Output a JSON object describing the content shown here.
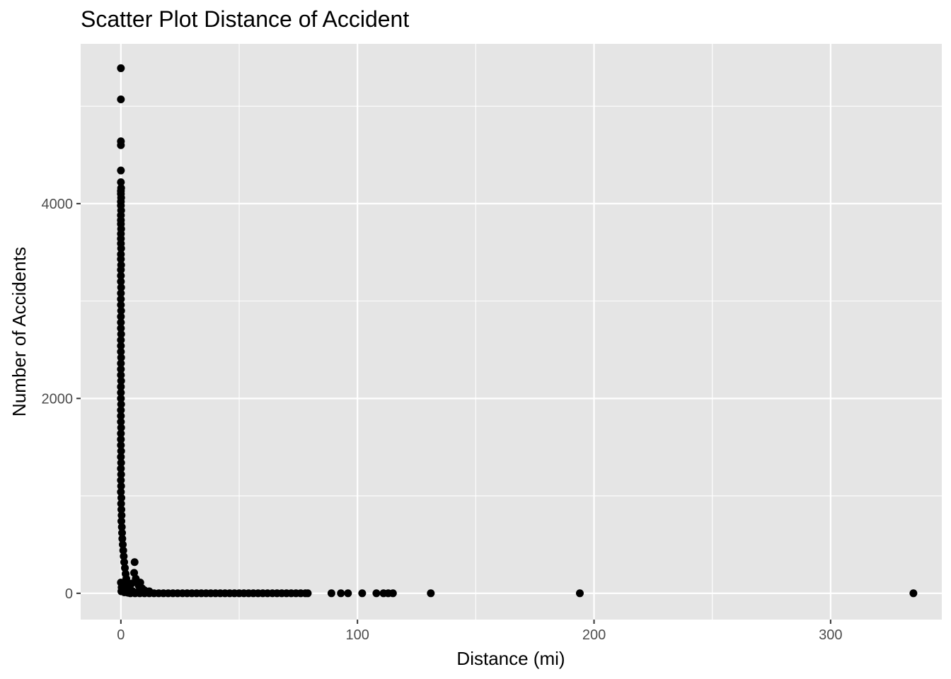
{
  "chart_data": {
    "type": "scatter",
    "title": "Scatter Plot Distance of Accident",
    "xlabel": "Distance (mi)",
    "ylabel": "Number of Accidents",
    "xlim": [
      -17,
      347
    ],
    "ylim": [
      -270,
      5640
    ],
    "x_ticks": [
      0,
      100,
      200,
      300
    ],
    "y_ticks": [
      0,
      2000,
      4000
    ],
    "x_tick_labels": [
      "0",
      "100",
      "200",
      "300"
    ],
    "y_tick_labels": [
      "0",
      "2000",
      "4000"
    ],
    "x_minor_ticks": [
      50,
      150,
      250
    ],
    "y_minor_ticks": [
      1000,
      3000,
      5000
    ],
    "grid": true,
    "legend": "none",
    "point_color": "#000000",
    "panel_background": "#e5e5e5",
    "grid_color": "#ffffff",
    "series": [
      {
        "points": [
          [
            0,
            5390
          ],
          [
            0,
            5070
          ],
          [
            0,
            4640
          ],
          [
            0,
            4600
          ],
          [
            0,
            4340
          ],
          [
            0,
            4220
          ],
          [
            0.1,
            4160
          ],
          [
            0,
            4130
          ],
          [
            0,
            4100
          ],
          [
            0.1,
            4060
          ],
          [
            0,
            4020
          ],
          [
            0,
            3980
          ],
          [
            0.1,
            3930
          ],
          [
            0,
            3880
          ],
          [
            0,
            3830
          ],
          [
            0,
            3790
          ],
          [
            0.1,
            3740
          ],
          [
            0,
            3690
          ],
          [
            0,
            3640
          ],
          [
            0,
            3590
          ],
          [
            0.1,
            3540
          ],
          [
            0,
            3480
          ],
          [
            0,
            3430
          ],
          [
            0.1,
            3370
          ],
          [
            0,
            3320
          ],
          [
            0,
            3260
          ],
          [
            0,
            3200
          ],
          [
            0.1,
            3140
          ],
          [
            0,
            3080
          ],
          [
            0,
            3020
          ],
          [
            0,
            2960
          ],
          [
            0.1,
            2900
          ],
          [
            0,
            2840
          ],
          [
            0,
            2780
          ],
          [
            0,
            2720
          ],
          [
            0.1,
            2660
          ],
          [
            0,
            2600
          ],
          [
            0,
            2540
          ],
          [
            0,
            2480
          ],
          [
            0.1,
            2420
          ],
          [
            0,
            2360
          ],
          [
            0,
            2300
          ],
          [
            0,
            2240
          ],
          [
            0.1,
            2180
          ],
          [
            0,
            2120
          ],
          [
            0,
            2060
          ],
          [
            0,
            2000
          ],
          [
            0.1,
            1940
          ],
          [
            0,
            1880
          ],
          [
            0,
            1820
          ],
          [
            0,
            1760
          ],
          [
            0.1,
            1700
          ],
          [
            0,
            1640
          ],
          [
            0,
            1580
          ],
          [
            0,
            1520
          ],
          [
            0.1,
            1460
          ],
          [
            0,
            1400
          ],
          [
            0.1,
            1340
          ],
          [
            0,
            1280
          ],
          [
            0.1,
            1220
          ],
          [
            0,
            1160
          ],
          [
            0.1,
            1100
          ],
          [
            0,
            1040
          ],
          [
            0.2,
            980
          ],
          [
            0.1,
            920
          ],
          [
            0.2,
            860
          ],
          [
            0.3,
            800
          ],
          [
            0.2,
            740
          ],
          [
            0.4,
            680
          ],
          [
            0.5,
            620
          ],
          [
            0.6,
            560
          ],
          [
            0.8,
            500
          ],
          [
            1,
            440
          ],
          [
            1.2,
            380
          ],
          [
            1.4,
            320
          ],
          [
            1.7,
            260
          ],
          [
            2,
            200
          ],
          [
            2.3,
            150
          ],
          [
            2.7,
            110
          ],
          [
            3.2,
            75
          ],
          [
            3.8,
            50
          ],
          [
            0,
            110
          ],
          [
            0.3,
            60
          ],
          [
            0.8,
            30
          ],
          [
            5.8,
            320
          ],
          [
            5.6,
            210
          ],
          [
            6.3,
            150
          ],
          [
            6.8,
            120
          ],
          [
            4.5,
            100
          ],
          [
            8.2,
            110
          ],
          [
            7.5,
            80
          ],
          [
            9,
            50
          ],
          [
            10,
            30
          ],
          [
            12,
            20
          ],
          [
            5,
            20
          ],
          [
            7,
            10
          ],
          [
            0.2,
            20
          ],
          [
            1.5,
            10
          ],
          [
            3,
            5
          ],
          [
            4,
            0
          ],
          [
            6,
            0
          ],
          [
            8,
            0
          ],
          [
            10,
            0
          ],
          [
            12,
            0
          ],
          [
            14,
            0
          ],
          [
            16,
            0
          ],
          [
            18,
            0
          ],
          [
            20,
            0
          ],
          [
            22,
            0
          ],
          [
            24,
            0
          ],
          [
            26,
            0
          ],
          [
            28,
            0
          ],
          [
            30,
            0
          ],
          [
            32,
            0
          ],
          [
            34,
            0
          ],
          [
            36,
            0
          ],
          [
            38,
            0
          ],
          [
            40,
            0
          ],
          [
            42,
            0
          ],
          [
            44,
            0
          ],
          [
            46,
            0
          ],
          [
            48,
            0
          ],
          [
            50,
            0
          ],
          [
            52,
            0
          ],
          [
            54,
            0
          ],
          [
            56,
            0
          ],
          [
            58,
            0
          ],
          [
            60,
            0
          ],
          [
            62,
            0
          ],
          [
            64,
            0
          ],
          [
            66,
            0
          ],
          [
            68,
            0
          ],
          [
            70,
            0
          ],
          [
            72,
            0
          ],
          [
            74,
            0
          ],
          [
            76,
            0
          ],
          [
            78,
            0
          ],
          [
            79,
            0
          ],
          [
            89,
            0
          ],
          [
            93,
            0
          ],
          [
            96,
            0
          ],
          [
            102,
            0
          ],
          [
            108,
            0
          ],
          [
            111,
            0
          ],
          [
            113,
            0
          ],
          [
            115,
            0
          ],
          [
            131,
            0
          ],
          [
            194,
            0
          ],
          [
            335,
            0
          ]
        ]
      }
    ]
  }
}
